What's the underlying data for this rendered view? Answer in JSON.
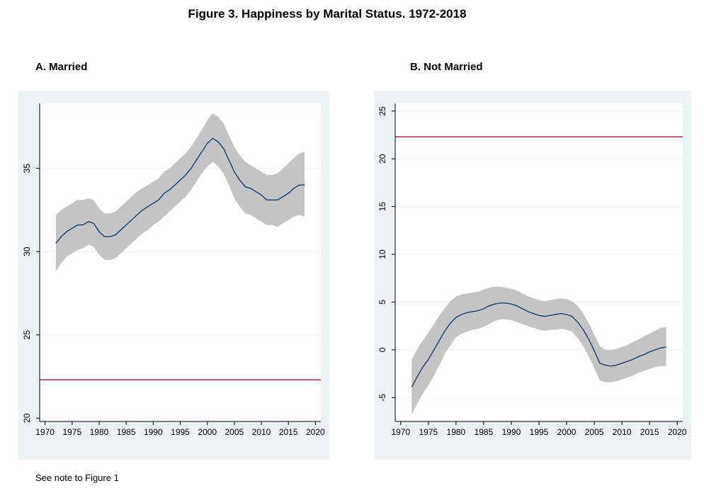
{
  "figure_title": "Figure 3.  Happiness by Marital Status. 1972-2018",
  "note": "See note to Figure 1",
  "colors": {
    "panel_bg": "#eaf2f3",
    "plot_bg": "#ffffff",
    "band": "#c4c4c4",
    "line": "#1a3f66",
    "reference_line": "#a5163f",
    "grid": "#eef0f0"
  },
  "chart_data": [
    {
      "type": "line",
      "title": "A.  Married",
      "xlabel": "",
      "ylabel": "",
      "xlim": [
        1969,
        2021
      ],
      "ylim": [
        19.8,
        38.9
      ],
      "x_ticks": [
        1970,
        1975,
        1980,
        1985,
        1990,
        1995,
        2000,
        2005,
        2010,
        2015,
        2020
      ],
      "y_ticks": [
        20,
        25,
        30,
        35
      ],
      "reference_y": 22.3,
      "grid": true,
      "x": [
        1972,
        1973,
        1974,
        1975,
        1976,
        1977,
        1978,
        1979,
        1980,
        1981,
        1982,
        1983,
        1984,
        1985,
        1986,
        1987,
        1988,
        1989,
        1990,
        1991,
        1992,
        1993,
        1994,
        1995,
        1996,
        1997,
        1998,
        1999,
        2000,
        2001,
        2002,
        2003,
        2004,
        2005,
        2006,
        2007,
        2008,
        2009,
        2010,
        2011,
        2012,
        2013,
        2014,
        2015,
        2016,
        2017,
        2018
      ],
      "series": [
        {
          "values": [
            30.5,
            30.9,
            31.2,
            31.4,
            31.6,
            31.6,
            31.8,
            31.7,
            31.2,
            30.9,
            30.9,
            31.0,
            31.3,
            31.6,
            31.9,
            32.2,
            32.5,
            32.7,
            32.9,
            33.1,
            33.5,
            33.7,
            34.0,
            34.3,
            34.6,
            35.0,
            35.5,
            36.0,
            36.5,
            36.8,
            36.6,
            36.2,
            35.5,
            34.8,
            34.3,
            33.9,
            33.8,
            33.6,
            33.4,
            33.1,
            33.1,
            33.1,
            33.3,
            33.5,
            33.8,
            34.0,
            34.0
          ]
        }
      ],
      "band_upper": [
        32.2,
        32.5,
        32.7,
        32.9,
        33.1,
        33.1,
        33.2,
        33.1,
        32.6,
        32.3,
        32.3,
        32.4,
        32.7,
        33.0,
        33.3,
        33.6,
        33.8,
        34.0,
        34.2,
        34.4,
        34.8,
        35.0,
        35.3,
        35.6,
        35.9,
        36.3,
        36.8,
        37.3,
        37.9,
        38.3,
        38.1,
        37.7,
        37.0,
        36.3,
        35.8,
        35.4,
        35.2,
        35.0,
        34.8,
        34.6,
        34.6,
        34.7,
        35.0,
        35.3,
        35.6,
        35.9,
        36.0
      ],
      "band_lower": [
        28.8,
        29.3,
        29.7,
        29.9,
        30.1,
        30.2,
        30.4,
        30.3,
        29.8,
        29.5,
        29.5,
        29.6,
        29.9,
        30.2,
        30.5,
        30.8,
        31.1,
        31.3,
        31.6,
        31.8,
        32.1,
        32.4,
        32.7,
        33.0,
        33.3,
        33.7,
        34.2,
        34.7,
        35.1,
        35.4,
        35.1,
        34.7,
        34.0,
        33.2,
        32.7,
        32.3,
        32.2,
        32.0,
        31.8,
        31.6,
        31.6,
        31.5,
        31.7,
        31.9,
        32.1,
        32.2,
        32.1
      ]
    },
    {
      "type": "line",
      "title": "B. Not Married",
      "xlabel": "",
      "ylabel": "",
      "xlim": [
        1969,
        2021
      ],
      "ylim": [
        -7.5,
        25.8
      ],
      "x_ticks": [
        1970,
        1975,
        1980,
        1985,
        1990,
        1995,
        2000,
        2005,
        2010,
        2015,
        2020
      ],
      "y_ticks": [
        -5,
        0,
        5,
        10,
        15,
        20,
        25
      ],
      "reference_y": 22.3,
      "grid": true,
      "x": [
        1972,
        1973,
        1974,
        1975,
        1976,
        1977,
        1978,
        1979,
        1980,
        1981,
        1982,
        1983,
        1984,
        1985,
        1986,
        1987,
        1988,
        1989,
        1990,
        1991,
        1992,
        1993,
        1994,
        1995,
        1996,
        1997,
        1998,
        1999,
        2000,
        2001,
        2002,
        2003,
        2004,
        2005,
        2006,
        2007,
        2008,
        2009,
        2010,
        2011,
        2012,
        2013,
        2014,
        2015,
        2016,
        2017,
        2018
      ],
      "series": [
        {
          "values": [
            -3.9,
            -2.8,
            -1.8,
            -1.0,
            0.0,
            1.0,
            2.0,
            2.8,
            3.4,
            3.7,
            3.9,
            4.0,
            4.1,
            4.3,
            4.6,
            4.8,
            4.9,
            4.9,
            4.8,
            4.6,
            4.3,
            4.0,
            3.8,
            3.6,
            3.5,
            3.6,
            3.7,
            3.8,
            3.7,
            3.5,
            2.9,
            2.1,
            1.1,
            -0.1,
            -1.4,
            -1.6,
            -1.7,
            -1.6,
            -1.4,
            -1.2,
            -1.0,
            -0.7,
            -0.5,
            -0.2,
            0.0,
            0.2,
            0.3
          ]
        }
      ],
      "band_upper": [
        -1.0,
        0.1,
        1.0,
        1.8,
        2.7,
        3.6,
        4.4,
        5.1,
        5.6,
        5.8,
        5.9,
        6.0,
        6.1,
        6.3,
        6.5,
        6.6,
        6.6,
        6.5,
        6.4,
        6.2,
        5.9,
        5.6,
        5.4,
        5.2,
        5.1,
        5.2,
        5.3,
        5.4,
        5.3,
        5.1,
        4.6,
        3.8,
        2.8,
        1.6,
        0.4,
        0.0,
        0.0,
        0.1,
        0.3,
        0.5,
        0.8,
        1.1,
        1.4,
        1.7,
        2.0,
        2.3,
        2.4
      ],
      "band_lower": [
        -6.8,
        -5.6,
        -4.6,
        -3.7,
        -2.7,
        -1.6,
        -0.4,
        0.5,
        1.3,
        1.7,
        1.9,
        2.1,
        2.2,
        2.4,
        2.7,
        3.0,
        3.2,
        3.2,
        3.1,
        2.9,
        2.7,
        2.5,
        2.3,
        2.1,
        2.0,
        2.1,
        2.1,
        2.2,
        2.1,
        1.9,
        1.2,
        0.4,
        -0.7,
        -1.9,
        -3.2,
        -3.4,
        -3.4,
        -3.3,
        -3.1,
        -2.9,
        -2.7,
        -2.4,
        -2.2,
        -2.0,
        -1.8,
        -1.7,
        -1.7
      ]
    }
  ]
}
